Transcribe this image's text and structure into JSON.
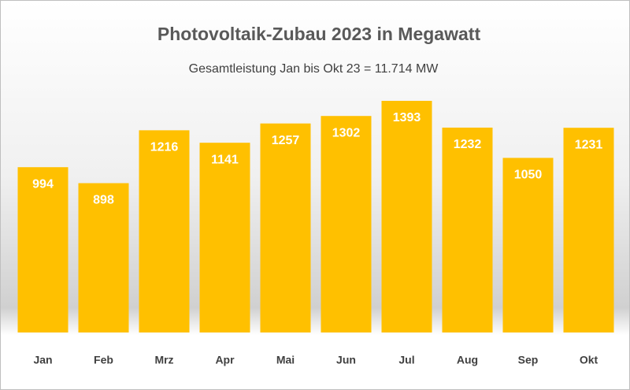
{
  "chart_data": {
    "type": "bar",
    "title": "Photovoltaik-Zubau 2023 in Megawatt",
    "subtitle": "Gesamtleistung Jan bis Okt 23 = 11.714 MW",
    "categories": [
      "Jan",
      "Feb",
      "Mrz",
      "Apr",
      "Mai",
      "Jun",
      "Jul",
      "Aug",
      "Sep",
      "Okt"
    ],
    "values": [
      994,
      898,
      1216,
      1141,
      1257,
      1302,
      1393,
      1232,
      1050,
      1231
    ],
    "color": "#FFC000"
  }
}
